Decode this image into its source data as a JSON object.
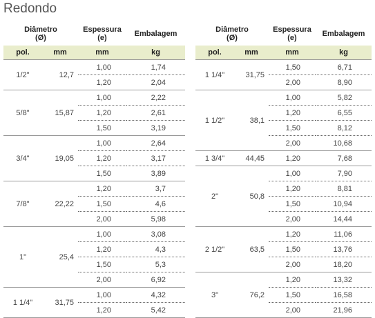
{
  "title": "Redondo",
  "tables": [
    {
      "header": {
        "diameter": [
          "Diâmetro",
          "(Ø)"
        ],
        "thickness": [
          "Espessura",
          "(e)"
        ],
        "package": "Embalagem"
      },
      "units": [
        "pol.",
        "mm",
        "mm",
        "kg"
      ],
      "groups": [
        {
          "pol": "1/2\"",
          "mm": "12,7",
          "rows": [
            [
              "1,00",
              "1,74"
            ],
            [
              "1,20",
              "2,04"
            ]
          ]
        },
        {
          "pol": "5/8\"",
          "mm": "15,87",
          "rows": [
            [
              "1,00",
              "2,22"
            ],
            [
              "1,20",
              "2,61"
            ],
            [
              "1,50",
              "3,19"
            ]
          ]
        },
        {
          "pol": "3/4\"",
          "mm": "19,05",
          "rows": [
            [
              "1,00",
              "2,64"
            ],
            [
              "1,20",
              "3,17"
            ],
            [
              "1,50",
              "3,89"
            ]
          ]
        },
        {
          "pol": "7/8\"",
          "mm": "22,22",
          "rows": [
            [
              "1,20",
              "3,7"
            ],
            [
              "1,50",
              "4,6"
            ],
            [
              "2,00",
              "5,98"
            ]
          ]
        },
        {
          "pol": "1\"",
          "mm": "25,4",
          "rows": [
            [
              "1,00",
              "3,08"
            ],
            [
              "1,20",
              "4,3"
            ],
            [
              "1,50",
              "5,3"
            ],
            [
              "2,00",
              "6,92"
            ]
          ]
        },
        {
          "pol": "1 1/4\"",
          "mm": "31,75",
          "rows": [
            [
              "1,00",
              "4,32"
            ],
            [
              "1,20",
              "5,42"
            ]
          ]
        }
      ]
    },
    {
      "header": {
        "diameter": [
          "Diâmetro",
          "(Ø)"
        ],
        "thickness": [
          "Espessura",
          "(e)"
        ],
        "package": "Embalagem"
      },
      "units": [
        "pol.",
        "mm",
        "mm",
        "kg"
      ],
      "groups": [
        {
          "pol": "1 1/4\"",
          "mm": "31,75",
          "rows": [
            [
              "1,50",
              "6,71"
            ],
            [
              "2,00",
              "8,90"
            ]
          ]
        },
        {
          "pol": "1 1/2\"",
          "mm": "38,1",
          "rows": [
            [
              "1,00",
              "5,82"
            ],
            [
              "1,20",
              "6,55"
            ],
            [
              "1,50",
              "8,12"
            ],
            [
              "2,00",
              "10,68"
            ]
          ]
        },
        {
          "pol": "1 3/4\"",
          "mm": "44,45",
          "rows": [
            [
              "1,20",
              "7,68"
            ]
          ]
        },
        {
          "pol": "2\"",
          "mm": "50,8",
          "rows": [
            [
              "1,00",
              "7,90"
            ],
            [
              "1,20",
              "8,81"
            ],
            [
              "1,50",
              "10,94"
            ],
            [
              "2,00",
              "14,44"
            ]
          ]
        },
        {
          "pol": "2 1/2\"",
          "mm": "63,5",
          "rows": [
            [
              "1,20",
              "11,06"
            ],
            [
              "1,50",
              "13,76"
            ],
            [
              "2,00",
              "18,20"
            ]
          ]
        },
        {
          "pol": "3\"",
          "mm": "76,2",
          "rows": [
            [
              "1,20",
              "13,32"
            ],
            [
              "1,50",
              "16,58"
            ],
            [
              "2,00",
              "21,96"
            ]
          ]
        }
      ]
    }
  ]
}
